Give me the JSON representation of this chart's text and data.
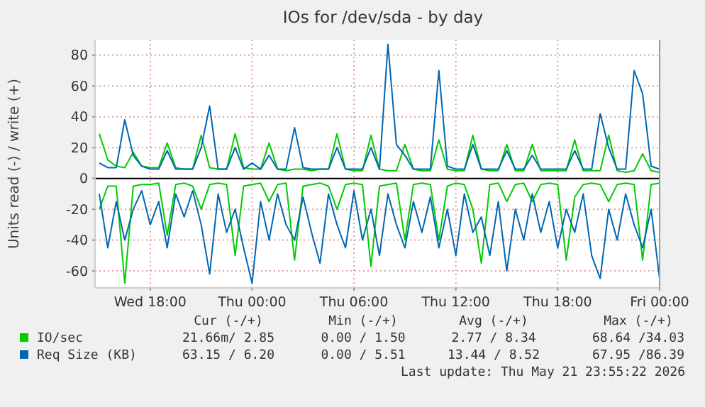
{
  "chart_data": {
    "type": "line",
    "title": "IOs for /dev/sda - by day",
    "ylabel": "Units read (-) / write (+)",
    "x": [
      "2026-05-20T15:00",
      "2026-05-20T15:30",
      "2026-05-20T16:00",
      "2026-05-20T16:30",
      "2026-05-20T17:00",
      "2026-05-20T17:30",
      "2026-05-20T18:00",
      "2026-05-20T18:30",
      "2026-05-20T19:00",
      "2026-05-20T19:30",
      "2026-05-20T20:00",
      "2026-05-20T20:30",
      "2026-05-20T21:00",
      "2026-05-20T21:30",
      "2026-05-20T22:00",
      "2026-05-20T22:30",
      "2026-05-20T23:00",
      "2026-05-20T23:30",
      "2026-05-21T00:00",
      "2026-05-21T00:30",
      "2026-05-21T01:00",
      "2026-05-21T01:30",
      "2026-05-21T02:00",
      "2026-05-21T02:30",
      "2026-05-21T03:00",
      "2026-05-21T03:30",
      "2026-05-21T04:00",
      "2026-05-21T04:30",
      "2026-05-21T05:00",
      "2026-05-21T05:30",
      "2026-05-21T06:00",
      "2026-05-21T06:30",
      "2026-05-21T07:00",
      "2026-05-21T07:30",
      "2026-05-21T08:00",
      "2026-05-21T08:30",
      "2026-05-21T09:00",
      "2026-05-21T09:30",
      "2026-05-21T10:00",
      "2026-05-21T10:30",
      "2026-05-21T11:00",
      "2026-05-21T11:30",
      "2026-05-21T12:00",
      "2026-05-21T12:30",
      "2026-05-21T13:00",
      "2026-05-21T13:30",
      "2026-05-21T14:00",
      "2026-05-21T14:30",
      "2026-05-21T15:00",
      "2026-05-21T15:30",
      "2026-05-21T16:00",
      "2026-05-21T16:30",
      "2026-05-21T17:00",
      "2026-05-21T17:30",
      "2026-05-21T18:00",
      "2026-05-21T18:30",
      "2026-05-21T19:00",
      "2026-05-21T19:30",
      "2026-05-21T20:00",
      "2026-05-21T20:30",
      "2026-05-21T21:00",
      "2026-05-21T21:30",
      "2026-05-21T22:00",
      "2026-05-21T22:30",
      "2026-05-21T23:00",
      "2026-05-21T23:30",
      "2026-05-22T00:00"
    ],
    "series": [
      {
        "name": "IO/sec",
        "color": "#00cc00",
        "values": [
          29,
          12,
          8,
          7,
          17,
          8,
          7,
          7,
          23,
          7,
          6,
          6,
          28,
          7,
          6,
          6,
          29,
          7,
          6,
          6,
          23,
          6,
          5,
          6,
          6,
          5,
          6,
          6,
          29,
          6,
          5,
          5,
          28,
          6,
          5,
          5,
          22,
          6,
          5,
          5,
          25,
          6,
          5,
          5,
          28,
          6,
          5,
          5,
          22,
          5,
          5,
          22,
          5,
          5,
          5,
          5,
          25,
          5,
          5,
          5,
          28,
          5,
          4,
          5,
          16,
          5,
          4
        ]
      },
      {
        "color": "#00cc00",
        "values": [
          -20,
          -5,
          -5,
          -68,
          -5,
          -4,
          -4,
          -3,
          -37,
          -4,
          -3,
          -5,
          -20,
          -4,
          -3,
          -4,
          -50,
          -5,
          -4,
          -3,
          -15,
          -4,
          -3,
          -53,
          -5,
          -4,
          -3,
          -5,
          -20,
          -4,
          -3,
          -4,
          -57,
          -5,
          -4,
          -3,
          -40,
          -4,
          -3,
          -4,
          -40,
          -5,
          -3,
          -4,
          -20,
          -55,
          -4,
          -3,
          -15,
          -4,
          -3,
          -15,
          -4,
          -3,
          -4,
          -53,
          -12,
          -4,
          -3,
          -4,
          -15,
          -4,
          -3,
          -4,
          -53,
          -4,
          -3
        ]
      },
      {
        "name": "Req Size (KB)",
        "color": "#0066b3",
        "values": [
          10,
          7,
          7,
          38,
          15,
          8,
          6,
          6,
          18,
          6,
          6,
          6,
          20,
          47,
          6,
          6,
          20,
          6,
          10,
          6,
          15,
          6,
          6,
          33,
          7,
          6,
          6,
          6,
          20,
          6,
          6,
          6,
          20,
          6,
          87,
          22,
          15,
          6,
          6,
          6,
          70,
          8,
          6,
          6,
          22,
          6,
          6,
          6,
          18,
          6,
          6,
          15,
          6,
          6,
          6,
          6,
          18,
          6,
          6,
          42,
          20,
          6,
          6,
          70,
          55,
          8,
          6
        ]
      },
      {
        "color": "#0066b3",
        "values": [
          -10,
          -45,
          -15,
          -40,
          -20,
          -8,
          -30,
          -15,
          -45,
          -10,
          -25,
          -8,
          -30,
          -62,
          -10,
          -35,
          -20,
          -45,
          -68,
          -15,
          -40,
          -10,
          -30,
          -40,
          -12,
          -35,
          -55,
          -10,
          -30,
          -45,
          -8,
          -40,
          -20,
          -50,
          -10,
          -30,
          -45,
          -15,
          -35,
          -12,
          -45,
          -20,
          -50,
          -10,
          -35,
          -25,
          -50,
          -15,
          -60,
          -20,
          -40,
          -10,
          -35,
          -15,
          -45,
          -20,
          -35,
          -10,
          -50,
          -65,
          -20,
          -40,
          -10,
          -30,
          -45,
          -20,
          -65
        ]
      }
    ],
    "xlim": [
      "2026-05-20T14:45",
      "2026-05-22T00:00"
    ],
    "xticks": [
      {
        "value": "2026-05-20T18:00",
        "label": "Wed 18:00"
      },
      {
        "value": "2026-05-21T00:00",
        "label": "Thu 00:00"
      },
      {
        "value": "2026-05-21T06:00",
        "label": "Thu 06:00"
      },
      {
        "value": "2026-05-21T12:00",
        "label": "Thu 12:00"
      },
      {
        "value": "2026-05-21T18:00",
        "label": "Thu 18:00"
      },
      {
        "value": "2026-05-22T00:00",
        "label": "Fri 00:00"
      }
    ],
    "ylim": [
      -71,
      90
    ],
    "yticks": [
      -60,
      -40,
      -20,
      0,
      20,
      40,
      60,
      80
    ],
    "grid": true,
    "legend": "bottom left",
    "ref_lines": [
      {
        "axis": "y",
        "value": 0,
        "color": "#000000"
      }
    ],
    "annotations": [
      "Cur (-/+)",
      "Min (-/+)",
      "Avg (-/+)",
      "Max (-/+)",
      "21.66m/ 2.85",
      "0.00 / 1.50",
      "2.77 / 8.34",
      "68.64 /34.03",
      "63.15 / 6.20",
      "0.00 / 5.51",
      "13.44 / 8.52",
      "67.95 /86.39",
      "Last update: Thu May 21 23:55:22 2026"
    ]
  }
}
